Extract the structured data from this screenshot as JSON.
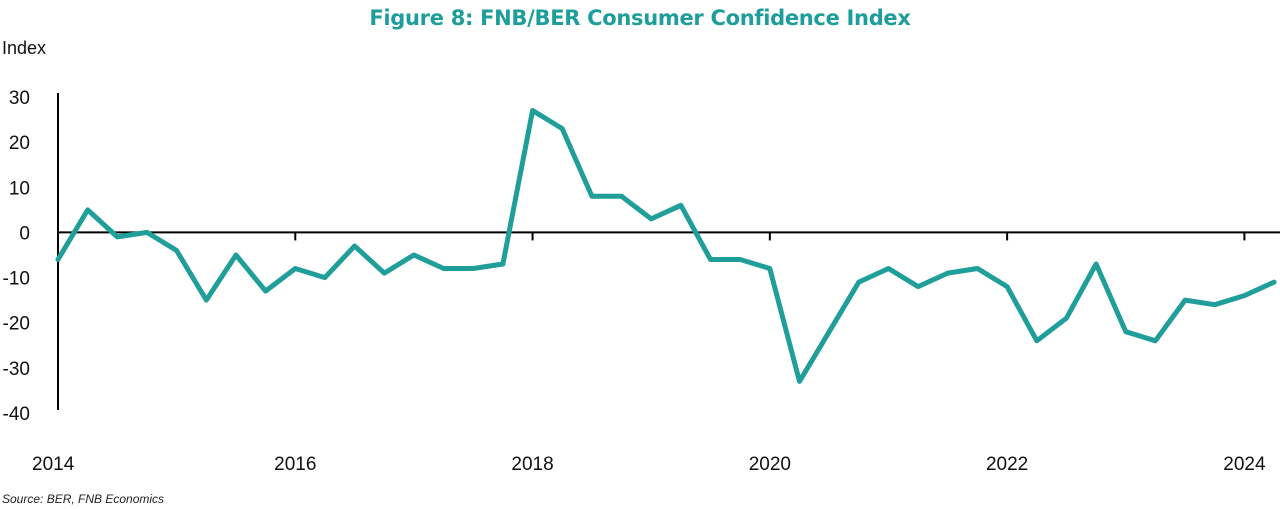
{
  "chart_data": {
    "type": "line",
    "title": "Figure 8: FNB/BER Consumer Confidence Index",
    "ylabel": "Index",
    "xlabel": "",
    "source": "Source: BER, FNB Economics",
    "ylim": [
      -40,
      30
    ],
    "yticks": [
      30,
      20,
      10,
      0,
      -10,
      -20,
      -30,
      -40
    ],
    "xlim": [
      2014,
      2024.3
    ],
    "xticks": [
      2014,
      2016,
      2018,
      2020,
      2022,
      2024
    ],
    "grid": false,
    "color": "#1f9e9a",
    "series": [
      {
        "x": [
          2014.0,
          2014.25,
          2014.5,
          2014.75,
          2015.0,
          2015.25,
          2015.5,
          2015.75,
          2016.0,
          2016.25,
          2016.5,
          2016.75,
          2017.0,
          2017.25,
          2017.5,
          2017.75,
          2018.0,
          2018.25,
          2018.5,
          2018.75,
          2019.0,
          2019.25,
          2019.5,
          2019.75,
          2020.0,
          2020.25,
          2020.5,
          2020.75,
          2021.0,
          2021.25,
          2021.5,
          2021.75,
          2022.0,
          2022.25,
          2022.5,
          2022.75,
          2023.0,
          2023.25,
          2023.5,
          2023.75,
          2024.0,
          2024.25
        ],
        "values": [
          -6,
          5,
          -1,
          0,
          -4,
          -15,
          -5,
          -13,
          -8,
          -10,
          -3,
          -9,
          -5,
          -8,
          -8,
          -7,
          27,
          23,
          8,
          8,
          3,
          6,
          -6,
          -6,
          -8,
          -33,
          -22,
          -11,
          -8,
          -12,
          -9,
          -8,
          -12,
          -24,
          -19,
          -7,
          -22,
          -24,
          -15,
          -16,
          -14,
          -11
        ]
      }
    ]
  }
}
